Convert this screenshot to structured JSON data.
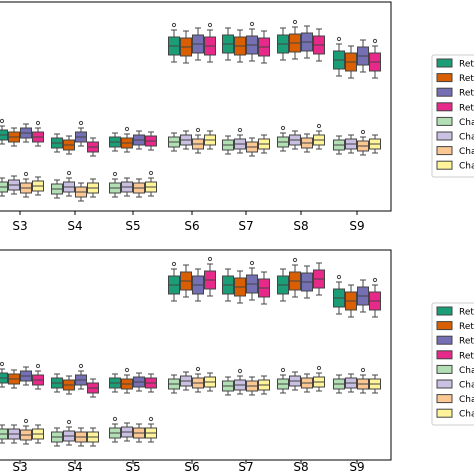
{
  "chart_data": [
    {
      "type": "box",
      "panel": "top",
      "categories": [
        "S3",
        "S4",
        "S5",
        "S6",
        "S7",
        "S8",
        "S9"
      ],
      "legend": {
        "placement": "right",
        "labels": [
          "Ret",
          "Ret",
          "Ret",
          "Ret",
          "Cha",
          "Cha",
          "Cha",
          "Cha"
        ]
      },
      "grid": false,
      "series": [
        {
          "label_index": 0,
          "color": "#1b9e77",
          "median": [
            135,
            143,
            142,
            46,
            44,
            44,
            60
          ]
        },
        {
          "label_index": 1,
          "color": "#d95f02",
          "median": [
            137,
            145,
            143,
            47,
            46,
            43,
            62
          ]
        },
        {
          "label_index": 2,
          "color": "#7570b3",
          "median": [
            133,
            137,
            140,
            44,
            45,
            42,
            56
          ]
        },
        {
          "label_index": 3,
          "color": "#e7298a",
          "median": [
            137,
            147,
            141,
            46,
            47,
            45,
            62
          ]
        },
        {
          "label_index": 4,
          "color": "#b2dfb4",
          "median": [
            187,
            189,
            188,
            142,
            145,
            142,
            145
          ]
        },
        {
          "label_index": 5,
          "color": "#c9c0e2",
          "median": [
            185,
            187,
            187,
            140,
            144,
            140,
            144
          ]
        },
        {
          "label_index": 6,
          "color": "#fbc893",
          "median": [
            188,
            192,
            188,
            144,
            147,
            143,
            146
          ]
        },
        {
          "label_index": 7,
          "color": "#fff49a",
          "median": [
            186,
            188,
            187,
            140,
            144,
            140,
            144
          ]
        }
      ]
    },
    {
      "type": "box",
      "panel": "bottom",
      "categories": [
        "S3",
        "S4",
        "S5",
        "S6",
        "S7",
        "S8",
        "S9"
      ],
      "legend": {
        "placement": "right",
        "labels": [
          "Ret",
          "Ret",
          "Ret",
          "Ret",
          "Cha",
          "Cha",
          "Cha",
          "Cha"
        ]
      },
      "grid": false,
      "series": [
        {
          "label_index": 0,
          "color": "#1b9e77",
          "median": [
            378,
            383,
            383,
            285,
            285,
            285,
            298
          ]
        },
        {
          "label_index": 1,
          "color": "#d95f02",
          "median": [
            379,
            385,
            384,
            281,
            287,
            281,
            301
          ]
        },
        {
          "label_index": 2,
          "color": "#7570b3",
          "median": [
            376,
            380,
            382,
            285,
            284,
            282,
            296
          ]
        },
        {
          "label_index": 3,
          "color": "#e7298a",
          "median": [
            380,
            388,
            383,
            280,
            288,
            279,
            301
          ]
        },
        {
          "label_index": 4,
          "color": "#b2dfb4",
          "median": [
            434,
            437,
            433,
            384,
            386,
            384,
            384
          ]
        },
        {
          "label_index": 5,
          "color": "#c9c0e2",
          "median": [
            434,
            436,
            432,
            381,
            385,
            381,
            383
          ]
        },
        {
          "label_index": 6,
          "color": "#fbc893",
          "median": [
            435,
            437,
            433,
            383,
            386,
            383,
            384
          ]
        },
        {
          "label_index": 7,
          "color": "#fff49a",
          "median": [
            434,
            437,
            433,
            382,
            385,
            382,
            384
          ]
        }
      ]
    }
  ]
}
